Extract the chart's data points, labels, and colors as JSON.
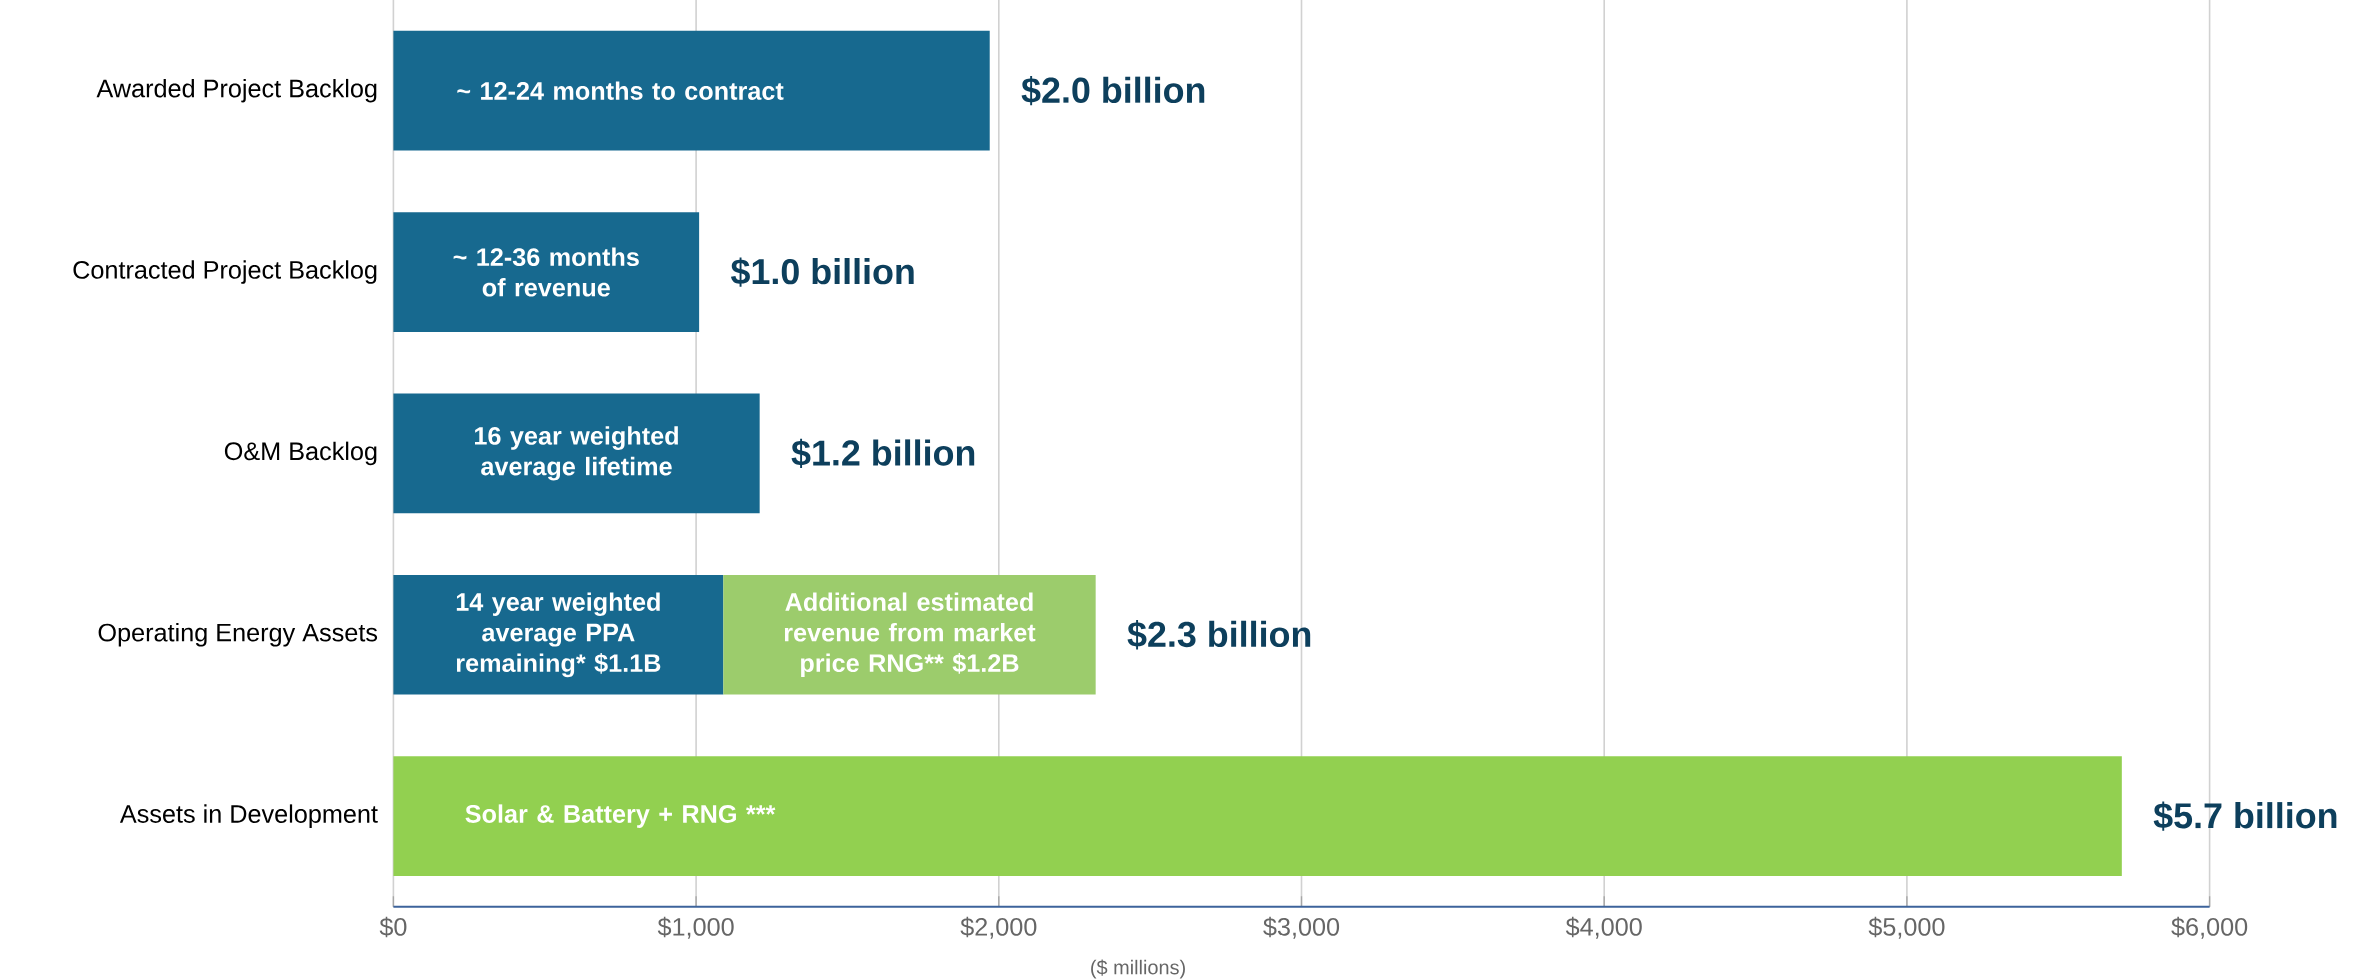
{
  "chart_data": {
    "type": "bar",
    "orientation": "horizontal",
    "stacked": true,
    "categories": [
      "Awarded Project Backlog",
      "Contracted Project Backlog",
      "O&M Backlog",
      "Operating Energy Assets",
      "Assets in Development"
    ],
    "series": [
      {
        "color": "#17698f",
        "values": [
          1970,
          1010,
          1210,
          1090,
          null
        ]
      },
      {
        "color": "#9ccc6c",
        "values": [
          null,
          null,
          null,
          1230,
          null
        ]
      },
      {
        "color": "#92d050",
        "values": [
          null,
          null,
          null,
          null,
          5710
        ]
      }
    ],
    "xlabel": "($ millions)",
    "xlim": [
      0,
      6000
    ],
    "xticks": [
      {
        "value": 0,
        "label": "$0"
      },
      {
        "value": 1000,
        "label": "$1,000"
      },
      {
        "value": 2000,
        "label": "$2,000"
      },
      {
        "value": 3000,
        "label": "$3,000"
      },
      {
        "value": 4000,
        "label": "$4,000"
      },
      {
        "value": 5000,
        "label": "$5,000"
      },
      {
        "value": 6000,
        "label": "$6,000"
      }
    ],
    "grid": "x",
    "totals": [
      "$2.0 billion",
      "$1.0 billion",
      "$1.2 billion",
      "$2.3 billion",
      "$5.7 billion"
    ],
    "annotations": [
      "~ 12-24 months to contract",
      "~ 12-36 months of revenue",
      "16 year weighted average lifetime",
      "14 year weighted average PPA remaining* $1.1B",
      "Additional estimated revenue from market price RNG** $1.2B",
      "Solar & Battery + RNG ***"
    ]
  }
}
